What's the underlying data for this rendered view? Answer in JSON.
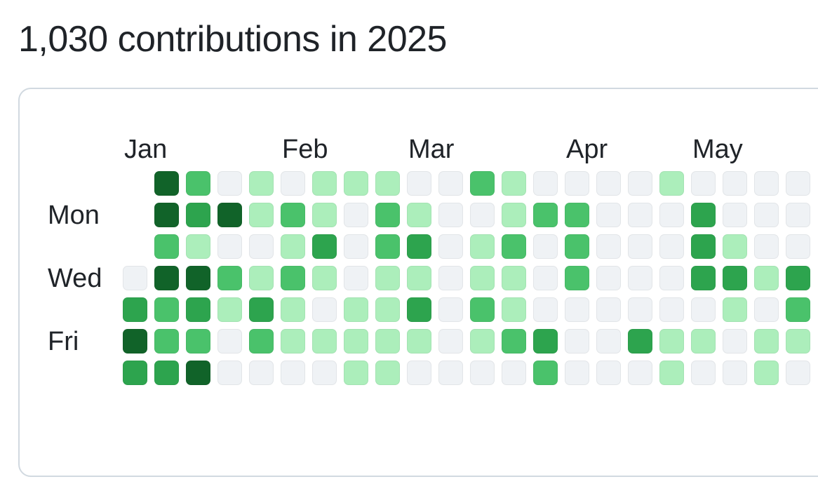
{
  "header": {
    "title": "1,030 contributions in 2025"
  },
  "calendar": {
    "months": [
      "Jan",
      "Feb",
      "Mar",
      "Apr",
      "May"
    ],
    "month_start_week": [
      0,
      5,
      9,
      14,
      18
    ],
    "weekday_labels": [
      {
        "label": "Mon",
        "day_index": 1
      },
      {
        "label": "Wed",
        "day_index": 3
      },
      {
        "label": "Fri",
        "day_index": 5
      }
    ],
    "level_colors": [
      "#eff2f5",
      "#aceebb",
      "#4ac26b",
      "#2da44e",
      "#116329"
    ],
    "weeks": [
      [
        null,
        null,
        null,
        0,
        3,
        4,
        3
      ],
      [
        4,
        4,
        2,
        4,
        2,
        2,
        3
      ],
      [
        2,
        3,
        1,
        4,
        3,
        2,
        4
      ],
      [
        0,
        4,
        0,
        2,
        1,
        0,
        0
      ],
      [
        1,
        1,
        0,
        1,
        3,
        2,
        0
      ],
      [
        0,
        2,
        1,
        2,
        1,
        1,
        0
      ],
      [
        1,
        1,
        3,
        1,
        0,
        1,
        0
      ],
      [
        1,
        0,
        0,
        0,
        1,
        1,
        1
      ],
      [
        1,
        2,
        2,
        1,
        1,
        1,
        1
      ],
      [
        0,
        1,
        3,
        1,
        3,
        1,
        0
      ],
      [
        0,
        0,
        0,
        0,
        0,
        0,
        0
      ],
      [
        2,
        0,
        1,
        1,
        2,
        1,
        0
      ],
      [
        1,
        1,
        2,
        1,
        1,
        2,
        0
      ],
      [
        0,
        2,
        0,
        0,
        0,
        3,
        2
      ],
      [
        0,
        2,
        2,
        2,
        0,
        0,
        0
      ],
      [
        0,
        0,
        0,
        0,
        0,
        0,
        0
      ],
      [
        0,
        0,
        0,
        0,
        0,
        3,
        0
      ],
      [
        1,
        0,
        0,
        0,
        0,
        1,
        1
      ],
      [
        0,
        3,
        3,
        3,
        0,
        1,
        0
      ],
      [
        0,
        0,
        1,
        3,
        1,
        0,
        0
      ],
      [
        0,
        0,
        0,
        1,
        0,
        1,
        1
      ],
      [
        0,
        0,
        0,
        3,
        2,
        1,
        0
      ]
    ]
  }
}
